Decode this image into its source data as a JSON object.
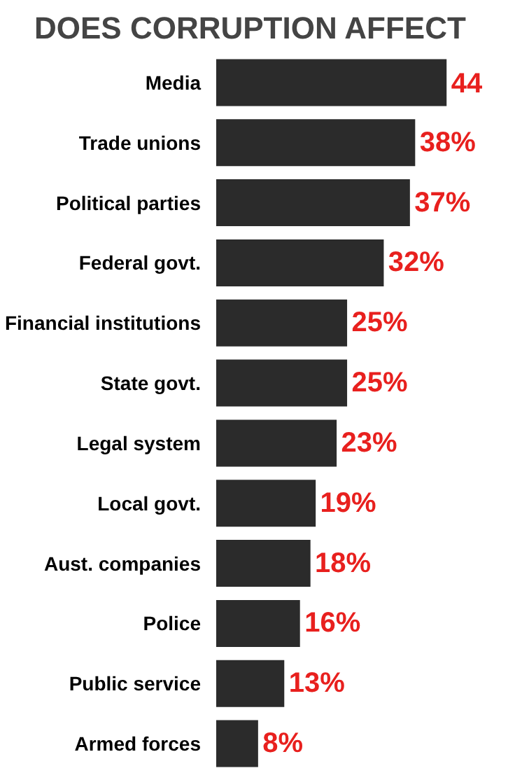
{
  "chart_data": {
    "type": "bar",
    "orientation": "horizontal",
    "title": "DOES CORRUPTION AFFECT",
    "categories": [
      "Media",
      "Trade unions",
      "Political parties",
      "Federal govt.",
      "Financial institutions",
      "State govt.",
      "Legal system",
      "Local govt.",
      "Aust. companies",
      "Police",
      "Public service",
      "Armed forces"
    ],
    "values": [
      44,
      38,
      37,
      32,
      25,
      25,
      23,
      19,
      18,
      16,
      13,
      8
    ],
    "value_labels": [
      "44",
      "38%",
      "37%",
      "32%",
      "25%",
      "25%",
      "23%",
      "19%",
      "18%",
      "16%",
      "13%",
      "8%"
    ],
    "color": "#2b2b2b"
  }
}
